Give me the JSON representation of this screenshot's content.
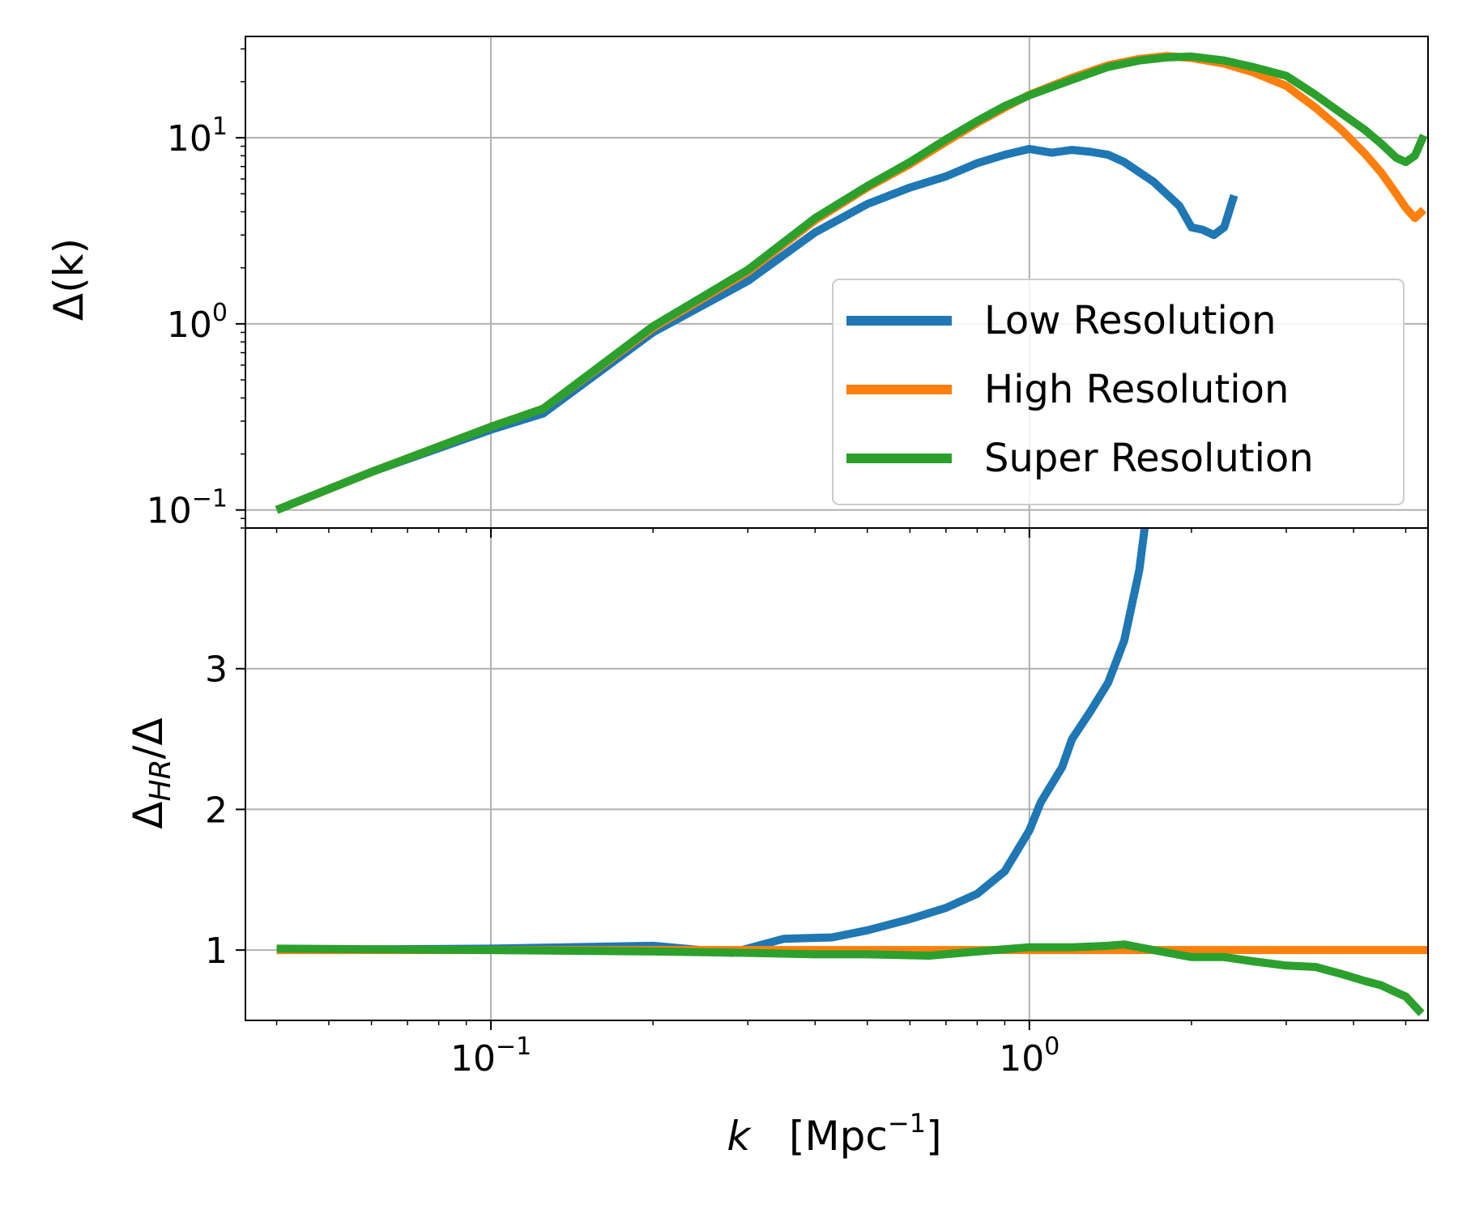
{
  "chart_data": [
    {
      "type": "line",
      "name": "top-panel",
      "ylabel": "Δ(k)",
      "xscale": "log",
      "yscale": "log",
      "xlim": [
        0.035,
        5.5
      ],
      "ylim": [
        0.08,
        35
      ],
      "x_ticks": [
        0.1,
        1
      ],
      "x_tick_labels": [
        "10^-1",
        "10^0"
      ],
      "y_ticks": [
        0.1,
        1,
        10
      ],
      "y_tick_labels": [
        "10^-1",
        "10^0",
        "10^1"
      ],
      "grid": true,
      "legend": {
        "placement": "right",
        "entries": [
          "Low Resolution",
          "High Resolution",
          "Super Resolution"
        ]
      },
      "series": [
        {
          "name": "Low Resolution",
          "color": "#1f77b4",
          "x": [
            0.04,
            0.06,
            0.1,
            0.125,
            0.2,
            0.3,
            0.4,
            0.5,
            0.6,
            0.7,
            0.8,
            0.9,
            1.0,
            1.1,
            1.2,
            1.3,
            1.4,
            1.5,
            1.7,
            1.9,
            2.0,
            2.1,
            2.2,
            2.3,
            2.4
          ],
          "values": [
            0.1,
            0.16,
            0.27,
            0.33,
            0.9,
            1.7,
            3.1,
            4.4,
            5.4,
            6.2,
            7.3,
            8.1,
            8.7,
            8.3,
            8.6,
            8.4,
            8.1,
            7.4,
            5.8,
            4.3,
            3.3,
            3.2,
            3.0,
            3.3,
            4.9
          ]
        },
        {
          "name": "High Resolution",
          "color": "#ff7f0e",
          "x": [
            0.04,
            0.06,
            0.1,
            0.125,
            0.2,
            0.3,
            0.4,
            0.5,
            0.6,
            0.7,
            0.8,
            0.9,
            1.0,
            1.2,
            1.4,
            1.6,
            1.8,
            2.0,
            2.3,
            2.6,
            3.0,
            3.4,
            3.8,
            4.2,
            4.5,
            4.8,
            5.0,
            5.2,
            5.4
          ],
          "values": [
            0.1,
            0.16,
            0.28,
            0.35,
            0.95,
            1.9,
            3.6,
            5.4,
            7.2,
            9.5,
            12.0,
            14.5,
            17.0,
            21.0,
            24.5,
            26.5,
            27.5,
            26.8,
            25.0,
            22.5,
            19.0,
            14.5,
            11.0,
            8.2,
            6.5,
            5.0,
            4.2,
            3.7,
            4.1
          ]
        },
        {
          "name": "Super Resolution",
          "color": "#2ca02c",
          "x": [
            0.04,
            0.06,
            0.1,
            0.125,
            0.2,
            0.3,
            0.4,
            0.5,
            0.6,
            0.7,
            0.8,
            0.9,
            1.0,
            1.2,
            1.4,
            1.6,
            1.8,
            2.0,
            2.3,
            2.6,
            3.0,
            3.4,
            3.8,
            4.2,
            4.5,
            4.8,
            5.0,
            5.2,
            5.4
          ],
          "values": [
            0.1,
            0.16,
            0.28,
            0.35,
            0.97,
            1.95,
            3.7,
            5.5,
            7.4,
            9.8,
            12.3,
            14.8,
            16.9,
            20.5,
            24.0,
            26.0,
            27.0,
            27.3,
            26.0,
            24.0,
            21.5,
            17.0,
            13.5,
            11.0,
            9.3,
            7.8,
            7.4,
            8.0,
            10.3
          ]
        }
      ]
    },
    {
      "type": "line",
      "name": "bottom-panel",
      "xlabel": "k   [Mpc^-1]",
      "ylabel": "Δ_HR/Δ",
      "xscale": "log",
      "yscale": "linear",
      "xlim": [
        0.035,
        5.5
      ],
      "ylim": [
        0.5,
        4.0
      ],
      "x_ticks": [
        0.1,
        1
      ],
      "x_tick_labels": [
        "10^-1",
        "10^0"
      ],
      "y_ticks": [
        1,
        2,
        3
      ],
      "y_tick_labels": [
        "1",
        "2",
        "3"
      ],
      "grid": true,
      "series": [
        {
          "name": "Low Resolution",
          "color": "#1f77b4",
          "x": [
            0.04,
            0.1,
            0.2,
            0.28,
            0.35,
            0.43,
            0.5,
            0.6,
            0.7,
            0.8,
            0.9,
            1.0,
            1.05,
            1.15,
            1.2,
            1.3,
            1.4,
            1.5,
            1.6,
            1.65
          ],
          "values": [
            1.0,
            1.01,
            1.03,
            0.98,
            1.08,
            1.09,
            1.14,
            1.22,
            1.3,
            1.4,
            1.56,
            1.85,
            2.05,
            2.3,
            2.5,
            2.7,
            2.9,
            3.2,
            3.7,
            4.1
          ]
        },
        {
          "name": "High Resolution",
          "color": "#ff7f0e",
          "x": [
            0.04,
            5.5
          ],
          "values": [
            1.0,
            1.0
          ]
        },
        {
          "name": "Super Resolution",
          "color": "#2ca02c",
          "x": [
            0.04,
            0.1,
            0.2,
            0.3,
            0.4,
            0.5,
            0.65,
            0.8,
            1.0,
            1.2,
            1.4,
            1.5,
            1.7,
            2.0,
            2.3,
            2.6,
            3.0,
            3.4,
            3.8,
            4.2,
            4.5,
            4.8,
            5.0,
            5.2,
            5.35
          ],
          "values": [
            1.01,
            1.0,
            0.99,
            0.98,
            0.97,
            0.97,
            0.96,
            0.99,
            1.02,
            1.02,
            1.03,
            1.04,
            1.0,
            0.95,
            0.95,
            0.92,
            0.89,
            0.88,
            0.83,
            0.78,
            0.75,
            0.7,
            0.67,
            0.6,
            0.55
          ]
        }
      ]
    }
  ]
}
